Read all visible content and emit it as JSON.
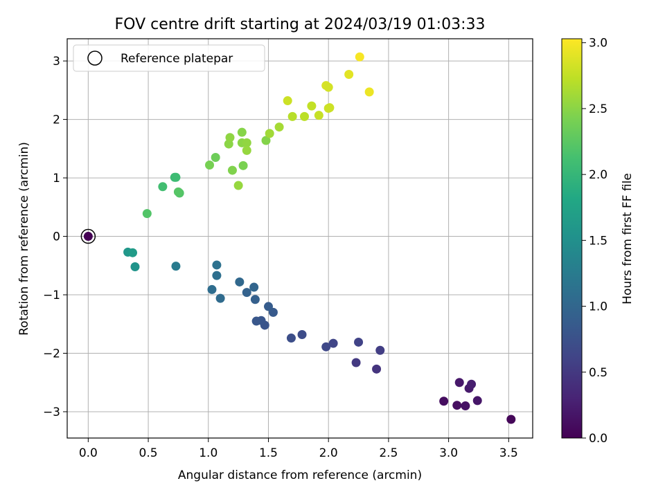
{
  "chart_data": {
    "type": "scatter",
    "title": "FOV centre drift starting at 2024/03/19 01:03:33",
    "xlabel": "Angular distance from reference (arcmin)",
    "ylabel": "Rotation from reference (arcmin)",
    "xlim": [
      -0.175,
      3.7
    ],
    "ylim": [
      -3.45,
      3.38
    ],
    "xticks": [
      0.0,
      0.5,
      1.0,
      1.5,
      2.0,
      2.5,
      3.0,
      3.5
    ],
    "xtick_labels": [
      "0.0",
      "0.5",
      "1.0",
      "1.5",
      "2.0",
      "2.5",
      "3.0",
      "3.5"
    ],
    "yticks": [
      3,
      2,
      1,
      0,
      -1,
      -2,
      -3
    ],
    "ytick_labels": [
      "3",
      "2",
      "1",
      "0",
      "−1",
      "−2",
      "−3"
    ],
    "grid": true,
    "legend": {
      "placement": "top-left",
      "entries": [
        "Reference platepar"
      ]
    },
    "colormap": "viridis",
    "colorbar": {
      "label": "Hours from first FF file",
      "range": [
        0.0,
        3.03
      ],
      "ticks": [
        0.0,
        0.5,
        1.0,
        1.5,
        2.0,
        2.5,
        3.0
      ],
      "tick_labels": [
        "0.0",
        "0.5",
        "1.0",
        "1.5",
        "2.0",
        "2.5",
        "3.0"
      ]
    },
    "reference_point": {
      "x": 0.0,
      "y": 0.0
    },
    "points": [
      {
        "x": 0.0,
        "y": 0.0,
        "c": 0.0
      },
      {
        "x": 3.52,
        "y": -3.13,
        "c": 0.05
      },
      {
        "x": 2.96,
        "y": -2.82,
        "c": 0.1
      },
      {
        "x": 3.07,
        "y": -2.89,
        "c": 0.12
      },
      {
        "x": 3.14,
        "y": -2.9,
        "c": 0.15
      },
      {
        "x": 3.24,
        "y": -2.81,
        "c": 0.18
      },
      {
        "x": 3.09,
        "y": -2.5,
        "c": 0.2
      },
      {
        "x": 3.17,
        "y": -2.6,
        "c": 0.22
      },
      {
        "x": 3.19,
        "y": -2.53,
        "c": 0.25
      },
      {
        "x": 2.4,
        "y": -2.27,
        "c": 0.45
      },
      {
        "x": 2.23,
        "y": -2.16,
        "c": 0.5
      },
      {
        "x": 2.43,
        "y": -1.95,
        "c": 0.55
      },
      {
        "x": 2.25,
        "y": -1.81,
        "c": 0.6
      },
      {
        "x": 2.04,
        "y": -1.83,
        "c": 0.62
      },
      {
        "x": 1.98,
        "y": -1.89,
        "c": 0.65
      },
      {
        "x": 1.78,
        "y": -1.68,
        "c": 0.7
      },
      {
        "x": 1.69,
        "y": -1.74,
        "c": 0.72
      },
      {
        "x": 1.47,
        "y": -1.52,
        "c": 0.78
      },
      {
        "x": 1.44,
        "y": -1.44,
        "c": 0.8
      },
      {
        "x": 1.4,
        "y": -1.45,
        "c": 0.82
      },
      {
        "x": 1.54,
        "y": -1.3,
        "c": 0.85
      },
      {
        "x": 1.5,
        "y": -1.2,
        "c": 0.88
      },
      {
        "x": 1.39,
        "y": -1.08,
        "c": 0.92
      },
      {
        "x": 1.32,
        "y": -0.96,
        "c": 0.95
      },
      {
        "x": 1.38,
        "y": -0.87,
        "c": 0.98
      },
      {
        "x": 1.26,
        "y": -0.78,
        "c": 1.02
      },
      {
        "x": 1.1,
        "y": -1.06,
        "c": 1.05
      },
      {
        "x": 1.03,
        "y": -0.91,
        "c": 1.08
      },
      {
        "x": 1.07,
        "y": -0.67,
        "c": 1.1
      },
      {
        "x": 1.07,
        "y": -0.49,
        "c": 1.13
      },
      {
        "x": 0.73,
        "y": -0.51,
        "c": 1.25
      },
      {
        "x": 0.39,
        "y": -0.52,
        "c": 1.55
      },
      {
        "x": 0.33,
        "y": -0.27,
        "c": 1.6
      },
      {
        "x": 0.37,
        "y": -0.28,
        "c": 1.65
      },
      {
        "x": 0.49,
        "y": 0.39,
        "c": 2.2
      },
      {
        "x": 0.62,
        "y": 0.85,
        "c": 2.1
      },
      {
        "x": 0.72,
        "y": 1.01,
        "c": 2.05
      },
      {
        "x": 0.73,
        "y": 1.01,
        "c": 2.07
      },
      {
        "x": 0.76,
        "y": 0.74,
        "c": 2.2
      },
      {
        "x": 0.75,
        "y": 0.76,
        "c": 2.22
      },
      {
        "x": 1.01,
        "y": 1.22,
        "c": 2.4
      },
      {
        "x": 1.06,
        "y": 1.35,
        "c": 2.35
      },
      {
        "x": 1.17,
        "y": 1.58,
        "c": 2.5
      },
      {
        "x": 1.18,
        "y": 1.69,
        "c": 2.52
      },
      {
        "x": 1.2,
        "y": 1.13,
        "c": 2.45
      },
      {
        "x": 1.25,
        "y": 0.87,
        "c": 2.55
      },
      {
        "x": 1.28,
        "y": 1.78,
        "c": 2.48
      },
      {
        "x": 1.29,
        "y": 1.21,
        "c": 2.42
      },
      {
        "x": 1.28,
        "y": 1.6,
        "c": 2.5
      },
      {
        "x": 1.32,
        "y": 1.6,
        "c": 2.53
      },
      {
        "x": 1.32,
        "y": 1.47,
        "c": 2.55
      },
      {
        "x": 1.48,
        "y": 1.64,
        "c": 2.47
      },
      {
        "x": 1.51,
        "y": 1.76,
        "c": 2.6
      },
      {
        "x": 1.59,
        "y": 1.87,
        "c": 2.62
      },
      {
        "x": 1.66,
        "y": 2.32,
        "c": 2.8
      },
      {
        "x": 1.7,
        "y": 2.05,
        "c": 2.7
      },
      {
        "x": 1.8,
        "y": 2.05,
        "c": 2.72
      },
      {
        "x": 1.86,
        "y": 2.23,
        "c": 2.75
      },
      {
        "x": 1.92,
        "y": 2.07,
        "c": 2.77
      },
      {
        "x": 1.98,
        "y": 2.58,
        "c": 2.85
      },
      {
        "x": 2.0,
        "y": 2.55,
        "c": 2.83
      },
      {
        "x": 2.0,
        "y": 2.19,
        "c": 2.8
      },
      {
        "x": 2.01,
        "y": 2.2,
        "c": 2.8
      },
      {
        "x": 2.17,
        "y": 2.77,
        "c": 2.9
      },
      {
        "x": 2.26,
        "y": 3.07,
        "c": 3.0
      },
      {
        "x": 2.34,
        "y": 2.47,
        "c": 2.95
      }
    ]
  }
}
